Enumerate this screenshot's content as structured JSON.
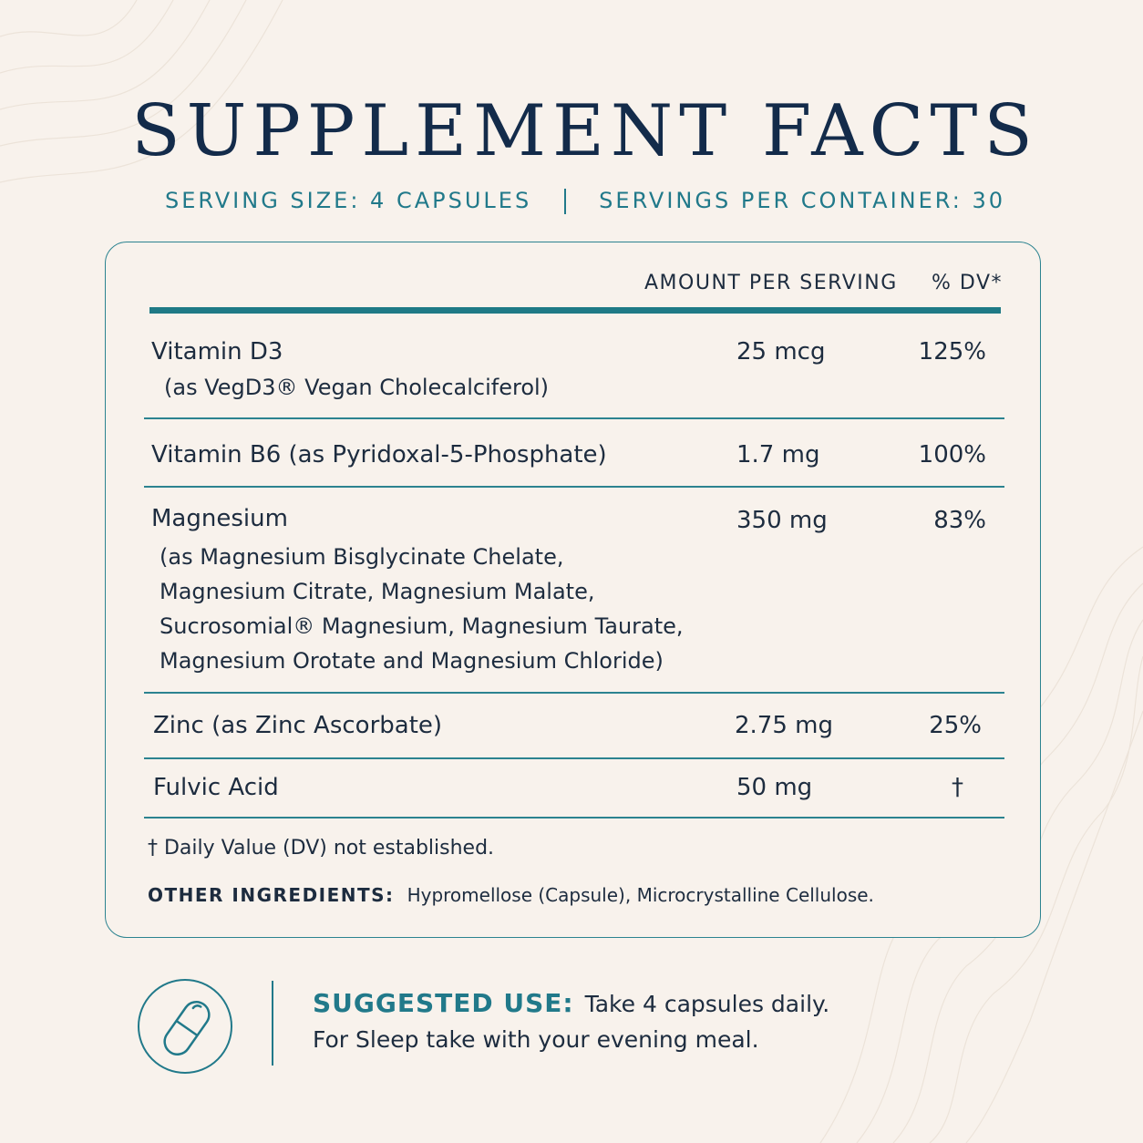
{
  "title": "SUPPLEMENT FACTS",
  "serving": {
    "size": "SERVING SIZE: 4 CAPSULES",
    "per_container": "SERVINGS PER CONTAINER: 30"
  },
  "table": {
    "header_amount": "AMOUNT PER SERVING",
    "header_dv": "% DV*",
    "rows": [
      {
        "name": "Vitamin D3",
        "sub": [
          "(as VegD3® Vegan Cholecalciferol)"
        ],
        "amount": "25 mcg",
        "dv": "125%"
      },
      {
        "name": "Vitamin B6 (as Pyridoxal-5-Phosphate)",
        "sub": [],
        "amount": "1.7 mg",
        "dv": "100%"
      },
      {
        "name": "Magnesium",
        "sub": [
          "(as Magnesium Bisglycinate Chelate,",
          "Magnesium Citrate, Magnesium Malate,",
          "Sucrosomial® Magnesium, Magnesium Taurate,",
          "Magnesium Orotate and Magnesium Chloride)"
        ],
        "amount": "350 mg",
        "dv": "83%"
      },
      {
        "name": "Zinc (as Zinc Ascorbate)",
        "sub": [],
        "amount": "2.75 mg",
        "dv": "25%"
      },
      {
        "name": "Fulvic Acid",
        "sub": [],
        "amount": "50 mg",
        "dv": "†"
      }
    ],
    "footnote": "† Daily Value (DV) not established.",
    "other_label": "OTHER INGREDIENTS:",
    "other_value": "Hypromellose (Capsule), Microcrystalline Cellulose."
  },
  "suggested_use": {
    "label": "SUGGESTED USE:",
    "line1": "Take 4 capsules daily.",
    "line2": "For Sleep take with your evening meal.",
    "icon": "capsule-icon"
  }
}
